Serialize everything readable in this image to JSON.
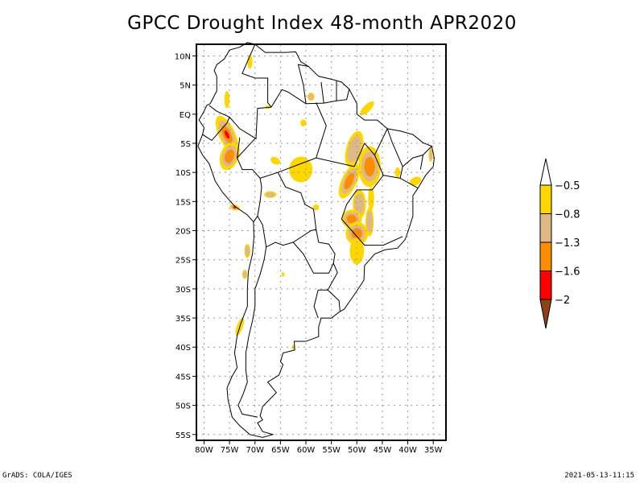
{
  "title": "GPCC Drought Index 48-month APR2020",
  "footer": {
    "left": "GrADS: COLA/IGES",
    "right": "2021-05-13-11:15"
  },
  "map": {
    "projection": "latlon",
    "lon_range": [
      -81.5,
      -32.5
    ],
    "lat_range": [
      -56,
      12
    ],
    "grid": "dotted",
    "lat_ticks": [
      {
        "value": 10,
        "label": "10N"
      },
      {
        "value": 5,
        "label": "5N"
      },
      {
        "value": 0,
        "label": "EQ"
      },
      {
        "value": -5,
        "label": "5S"
      },
      {
        "value": -10,
        "label": "10S"
      },
      {
        "value": -15,
        "label": "15S"
      },
      {
        "value": -20,
        "label": "20S"
      },
      {
        "value": -25,
        "label": "25S"
      },
      {
        "value": -30,
        "label": "30S"
      },
      {
        "value": -35,
        "label": "35S"
      },
      {
        "value": -40,
        "label": "40S"
      },
      {
        "value": -45,
        "label": "45S"
      },
      {
        "value": -50,
        "label": "50S"
      },
      {
        "value": -55,
        "label": "55S"
      }
    ],
    "lon_ticks": [
      {
        "value": -80,
        "label": "80W"
      },
      {
        "value": -75,
        "label": "75W"
      },
      {
        "value": -70,
        "label": "70W"
      },
      {
        "value": -65,
        "label": "65W"
      },
      {
        "value": -60,
        "label": "60W"
      },
      {
        "value": -55,
        "label": "55W"
      },
      {
        "value": -50,
        "label": "50W"
      },
      {
        "value": -45,
        "label": "45W"
      },
      {
        "value": -40,
        "label": "40W"
      },
      {
        "value": -35,
        "label": "35W"
      }
    ],
    "drought_patches": [
      {
        "lon": -75.5,
        "lat": -3.5,
        "class": 3,
        "rx": 1.6,
        "ry": 3.5,
        "rot": -25
      },
      {
        "lon": -75,
        "lat": -7.2,
        "class": 2,
        "rx": 1.8,
        "ry": 2.5,
        "rot": 20
      },
      {
        "lon": -61,
        "lat": -9.5,
        "class": 0,
        "rx": 2.3,
        "ry": 2.2,
        "rot": 0
      },
      {
        "lon": -60.5,
        "lat": -1.5,
        "class": 0,
        "rx": 0.6,
        "ry": 0.6,
        "rot": 0
      },
      {
        "lon": -59,
        "lat": 3,
        "class": 1,
        "rx": 0.7,
        "ry": 0.7,
        "rot": 0
      },
      {
        "lon": -48,
        "lat": 1,
        "class": 0,
        "rx": 0.7,
        "ry": 1.6,
        "rot": 45
      },
      {
        "lon": -50.5,
        "lat": -6,
        "class": 1,
        "rx": 1.6,
        "ry": 3.2,
        "rot": 15
      },
      {
        "lon": -47.5,
        "lat": -9,
        "class": 2,
        "rx": 2.2,
        "ry": 3.5,
        "rot": 0
      },
      {
        "lon": -51.5,
        "lat": -11.5,
        "class": 2,
        "rx": 1.5,
        "ry": 3.2,
        "rot": 25
      },
      {
        "lon": -49.5,
        "lat": -15.5,
        "class": 1,
        "rx": 1.3,
        "ry": 2.5,
        "rot": 0
      },
      {
        "lon": -51,
        "lat": -18,
        "class": 2,
        "rx": 2.0,
        "ry": 1.6,
        "rot": 0
      },
      {
        "lon": -50,
        "lat": -20.5,
        "class": 2,
        "rx": 2.2,
        "ry": 2.0,
        "rot": 0
      },
      {
        "lon": -47.5,
        "lat": -18.5,
        "class": 1,
        "rx": 0.8,
        "ry": 2.5,
        "rot": 0
      },
      {
        "lon": -50,
        "lat": -23.5,
        "class": 0,
        "rx": 1.4,
        "ry": 2.3,
        "rot": 0
      },
      {
        "lon": -47.2,
        "lat": -14.5,
        "class": 0,
        "rx": 0.6,
        "ry": 2.0,
        "rot": 0
      },
      {
        "lon": -42,
        "lat": -10,
        "class": 0,
        "rx": 0.5,
        "ry": 0.9,
        "rot": 0
      },
      {
        "lon": -38.5,
        "lat": -11.5,
        "class": 0,
        "rx": 1.2,
        "ry": 0.7,
        "rot": -25
      },
      {
        "lon": -35.5,
        "lat": -7,
        "class": 1,
        "rx": 0.4,
        "ry": 1.2,
        "rot": 0
      },
      {
        "lon": -66,
        "lat": -8,
        "class": 0,
        "rx": 1.0,
        "ry": 0.6,
        "rot": 30
      },
      {
        "lon": -67,
        "lat": -13.8,
        "class": 1,
        "rx": 1.2,
        "ry": 0.6,
        "rot": 0
      },
      {
        "lon": -74,
        "lat": -16,
        "class": 3,
        "rx": 1.0,
        "ry": 0.5,
        "rot": 15
      },
      {
        "lon": -71.5,
        "lat": -23.5,
        "class": 1,
        "rx": 0.6,
        "ry": 1.2,
        "rot": 0
      },
      {
        "lon": -72,
        "lat": -27.5,
        "class": 1,
        "rx": 0.5,
        "ry": 0.8,
        "rot": 0
      },
      {
        "lon": -73,
        "lat": -36.5,
        "class": 0,
        "rx": 0.6,
        "ry": 1.6,
        "rot": 20
      },
      {
        "lon": -75.5,
        "lat": 2.5,
        "class": 0,
        "rx": 0.5,
        "ry": 1.5,
        "rot": 0
      },
      {
        "lon": -71,
        "lat": 9,
        "class": 0,
        "rx": 0.5,
        "ry": 1.2,
        "rot": 0
      },
      {
        "lon": -67.5,
        "lat": 1.2,
        "class": 0,
        "rx": 0.5,
        "ry": 0.3,
        "rot": 0
      },
      {
        "lon": -58,
        "lat": -16,
        "class": 0,
        "rx": 0.6,
        "ry": 0.5,
        "rot": 0
      },
      {
        "lon": -64.5,
        "lat": -27.5,
        "class": 0,
        "rx": 0.3,
        "ry": 0.4,
        "rot": 0
      },
      {
        "lon": -62.5,
        "lat": -40,
        "class": 0,
        "rx": 0.3,
        "ry": 0.4,
        "rot": 0
      }
    ]
  },
  "colorbar": {
    "levels": [
      "-0.5",
      "-0.8",
      "-1.3",
      "-1.6",
      "-2"
    ],
    "colors": {
      "above": "#ffffff",
      "bins": [
        "#ffd700",
        "#deb887",
        "#ff8c00",
        "#ff0000"
      ],
      "below": "#8b4513"
    }
  }
}
